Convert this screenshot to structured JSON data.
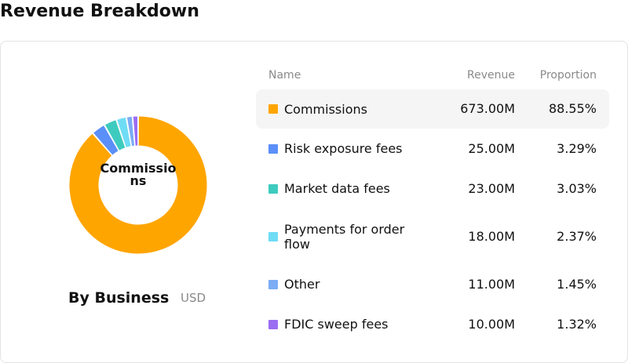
{
  "page": {
    "title": "Revenue Breakdown"
  },
  "donut": {
    "center_label": "Commissions"
  },
  "footer": {
    "label": "By Business",
    "currency": "USD"
  },
  "table": {
    "headers": {
      "name": "Name",
      "revenue": "Revenue",
      "proportion": "Proportion"
    }
  },
  "chart_data": {
    "type": "pie",
    "title": "Revenue Breakdown",
    "unit": "USD",
    "categories": [
      "Commissions",
      "Risk exposure fees",
      "Market data fees",
      "Payments for order flow",
      "Other",
      "FDIC sweep fees"
    ],
    "values": [
      673.0,
      25.0,
      23.0,
      18.0,
      11.0,
      10.0
    ],
    "rows": [
      {
        "name": "Commissions",
        "revenue": "673.00M",
        "proportion": "88.55%",
        "color": "#FFA500"
      },
      {
        "name": "Risk exposure fees",
        "revenue": "25.00M",
        "proportion": "3.29%",
        "color": "#5B8FF9"
      },
      {
        "name": "Market data fees",
        "revenue": "23.00M",
        "proportion": "3.03%",
        "color": "#3ECBBF"
      },
      {
        "name": "Payments for order flow",
        "revenue": "18.00M",
        "proportion": "2.37%",
        "color": "#6FDCF5"
      },
      {
        "name": "Other",
        "revenue": "11.00M",
        "proportion": "1.45%",
        "color": "#7BACF5"
      },
      {
        "name": "FDIC sweep fees",
        "revenue": "10.00M",
        "proportion": "1.32%",
        "color": "#9B6DF2"
      }
    ],
    "highlighted": "Commissions"
  }
}
